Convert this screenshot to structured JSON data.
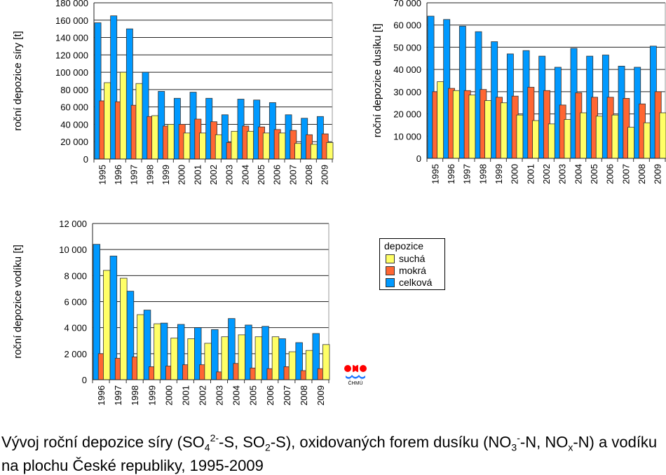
{
  "legend": {
    "title": "depozice",
    "items": [
      {
        "label": "suchá",
        "color": "#ffff66"
      },
      {
        "label": "mokrá",
        "color": "#ff6633"
      },
      {
        "label": "celková",
        "color": "#0099ff"
      }
    ]
  },
  "logo_text": "ČHMÚ",
  "caption": {
    "p1": "Vývoj roční depozice síry (SO",
    "s1": "4",
    "sup1": "2-",
    "p2": "-S, SO",
    "s2": "2",
    "p3": "-S), oxidovaných forem dusíku (NO",
    "s3": "3",
    "sup3": "-",
    "p4": "-N, NO",
    "s4": "x",
    "p5": "-N) a vodíku na plochu České republiky, 1995-2009"
  },
  "chart_data": [
    {
      "type": "bar",
      "title": "",
      "ylabel": "roční depozice síry [t]",
      "ylim": [
        0,
        180000
      ],
      "yticks": [
        "0",
        "20 000",
        "40 000",
        "60 000",
        "80 000",
        "100 000",
        "120 000",
        "140 000",
        "160 000",
        "180 000"
      ],
      "categories": [
        "1995",
        "1996",
        "1997",
        "1998",
        "1999",
        "2000",
        "2001",
        "2002",
        "2003",
        "2004",
        "2005",
        "2006",
        "2007",
        "2008",
        "2009"
      ],
      "series": [
        {
          "name": "celková",
          "values": [
            157000,
            165000,
            150000,
            100000,
            78000,
            70000,
            77000,
            70000,
            51000,
            69000,
            68000,
            65000,
            51000,
            47000,
            49000
          ]
        },
        {
          "name": "mokrá",
          "values": [
            67000,
            66000,
            62000,
            49000,
            38000,
            40000,
            46000,
            43000,
            19000,
            38000,
            37000,
            34000,
            33000,
            28000,
            29000
          ]
        },
        {
          "name": "suchá",
          "values": [
            88000,
            100000,
            87000,
            50000,
            40000,
            30000,
            30000,
            28000,
            32000,
            32000,
            30000,
            30000,
            18000,
            17000,
            19000
          ]
        }
      ]
    },
    {
      "type": "bar",
      "title": "",
      "ylabel": "roční depozice dusíku [t]",
      "ylim": [
        0,
        70000
      ],
      "yticks": [
        "0",
        "10 000",
        "20 000",
        "30 000",
        "40 000",
        "50 000",
        "60 000",
        "70 000"
      ],
      "categories": [
        "1995",
        "1996",
        "1997",
        "1998",
        "1999",
        "2000",
        "2001",
        "2002",
        "2003",
        "2004",
        "2005",
        "2006",
        "2007",
        "2008",
        "2009"
      ],
      "series": [
        {
          "name": "celková",
          "values": [
            64000,
            62500,
            59500,
            57000,
            52500,
            47000,
            48500,
            46000,
            41000,
            49500,
            46000,
            46500,
            41500,
            41000,
            50500
          ]
        },
        {
          "name": "mokrá",
          "values": [
            30000,
            31500,
            30500,
            31000,
            27500,
            28000,
            32000,
            30500,
            24000,
            29500,
            27500,
            27500,
            27000,
            24500,
            30000
          ]
        },
        {
          "name": "suchá",
          "values": [
            34500,
            30500,
            28500,
            26000,
            25000,
            19500,
            17000,
            15500,
            17500,
            20500,
            19000,
            19500,
            14000,
            16000,
            20500
          ]
        }
      ]
    },
    {
      "type": "bar",
      "title": "",
      "ylabel": "roční depozice vodíku [t]",
      "ylim": [
        0,
        12000
      ],
      "yticks": [
        "0",
        "2 000",
        "4 000",
        "6 000",
        "8 000",
        "10 000",
        "12 000"
      ],
      "categories": [
        "1996",
        "1997",
        "1998",
        "1999",
        "2000",
        "2001",
        "2002",
        "2003",
        "2004",
        "2005",
        "2006",
        "2007",
        "2008",
        "2009"
      ],
      "series": [
        {
          "name": "celková",
          "values": [
            10400,
            9500,
            6800,
            5350,
            4350,
            4250,
            4000,
            3850,
            4700,
            4200,
            4100,
            3150,
            2850,
            3550
          ]
        },
        {
          "name": "mokrá",
          "values": [
            2000,
            1650,
            1750,
            1000,
            1050,
            1150,
            1150,
            600,
            1250,
            900,
            850,
            1000,
            700,
            850
          ]
        },
        {
          "name": "suchá",
          "values": [
            8400,
            7800,
            5000,
            4300,
            3200,
            3150,
            2800,
            3300,
            3450,
            3300,
            3300,
            2150,
            2250,
            2700
          ]
        }
      ]
    }
  ]
}
